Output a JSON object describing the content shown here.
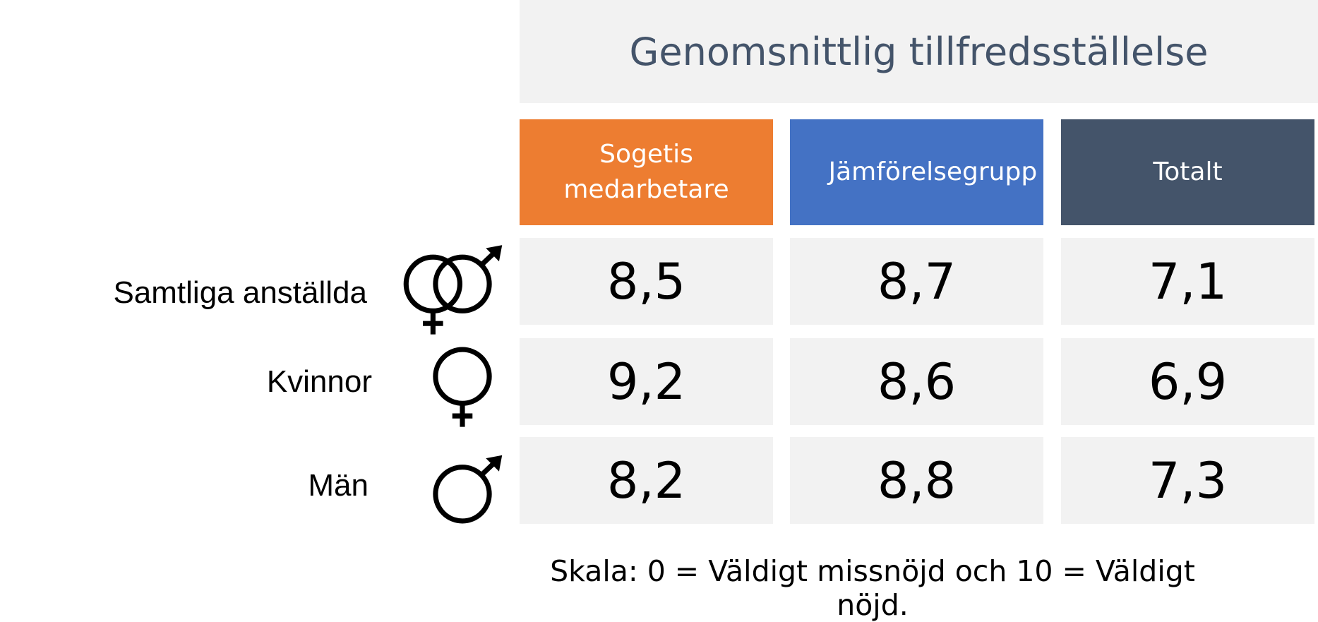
{
  "header": {
    "title": "Genomsnittlig tillfredsställelse"
  },
  "columns": [
    "Sogetis medarbetare",
    "Jämförelsegrupp",
    "Totalt"
  ],
  "rows": [
    {
      "label": "Samtliga anställda",
      "values": [
        "8,5",
        "8,7",
        "7,1"
      ]
    },
    {
      "label": "Kvinnor",
      "values": [
        "9,2",
        "8,6",
        "6,9"
      ]
    },
    {
      "label": "Män",
      "values": [
        "8,2",
        "8,8",
        "7,3"
      ]
    }
  ],
  "footnote": "Skala: 0 = Väldigt missnöjd och 10 = Väldigt nöjd."
}
